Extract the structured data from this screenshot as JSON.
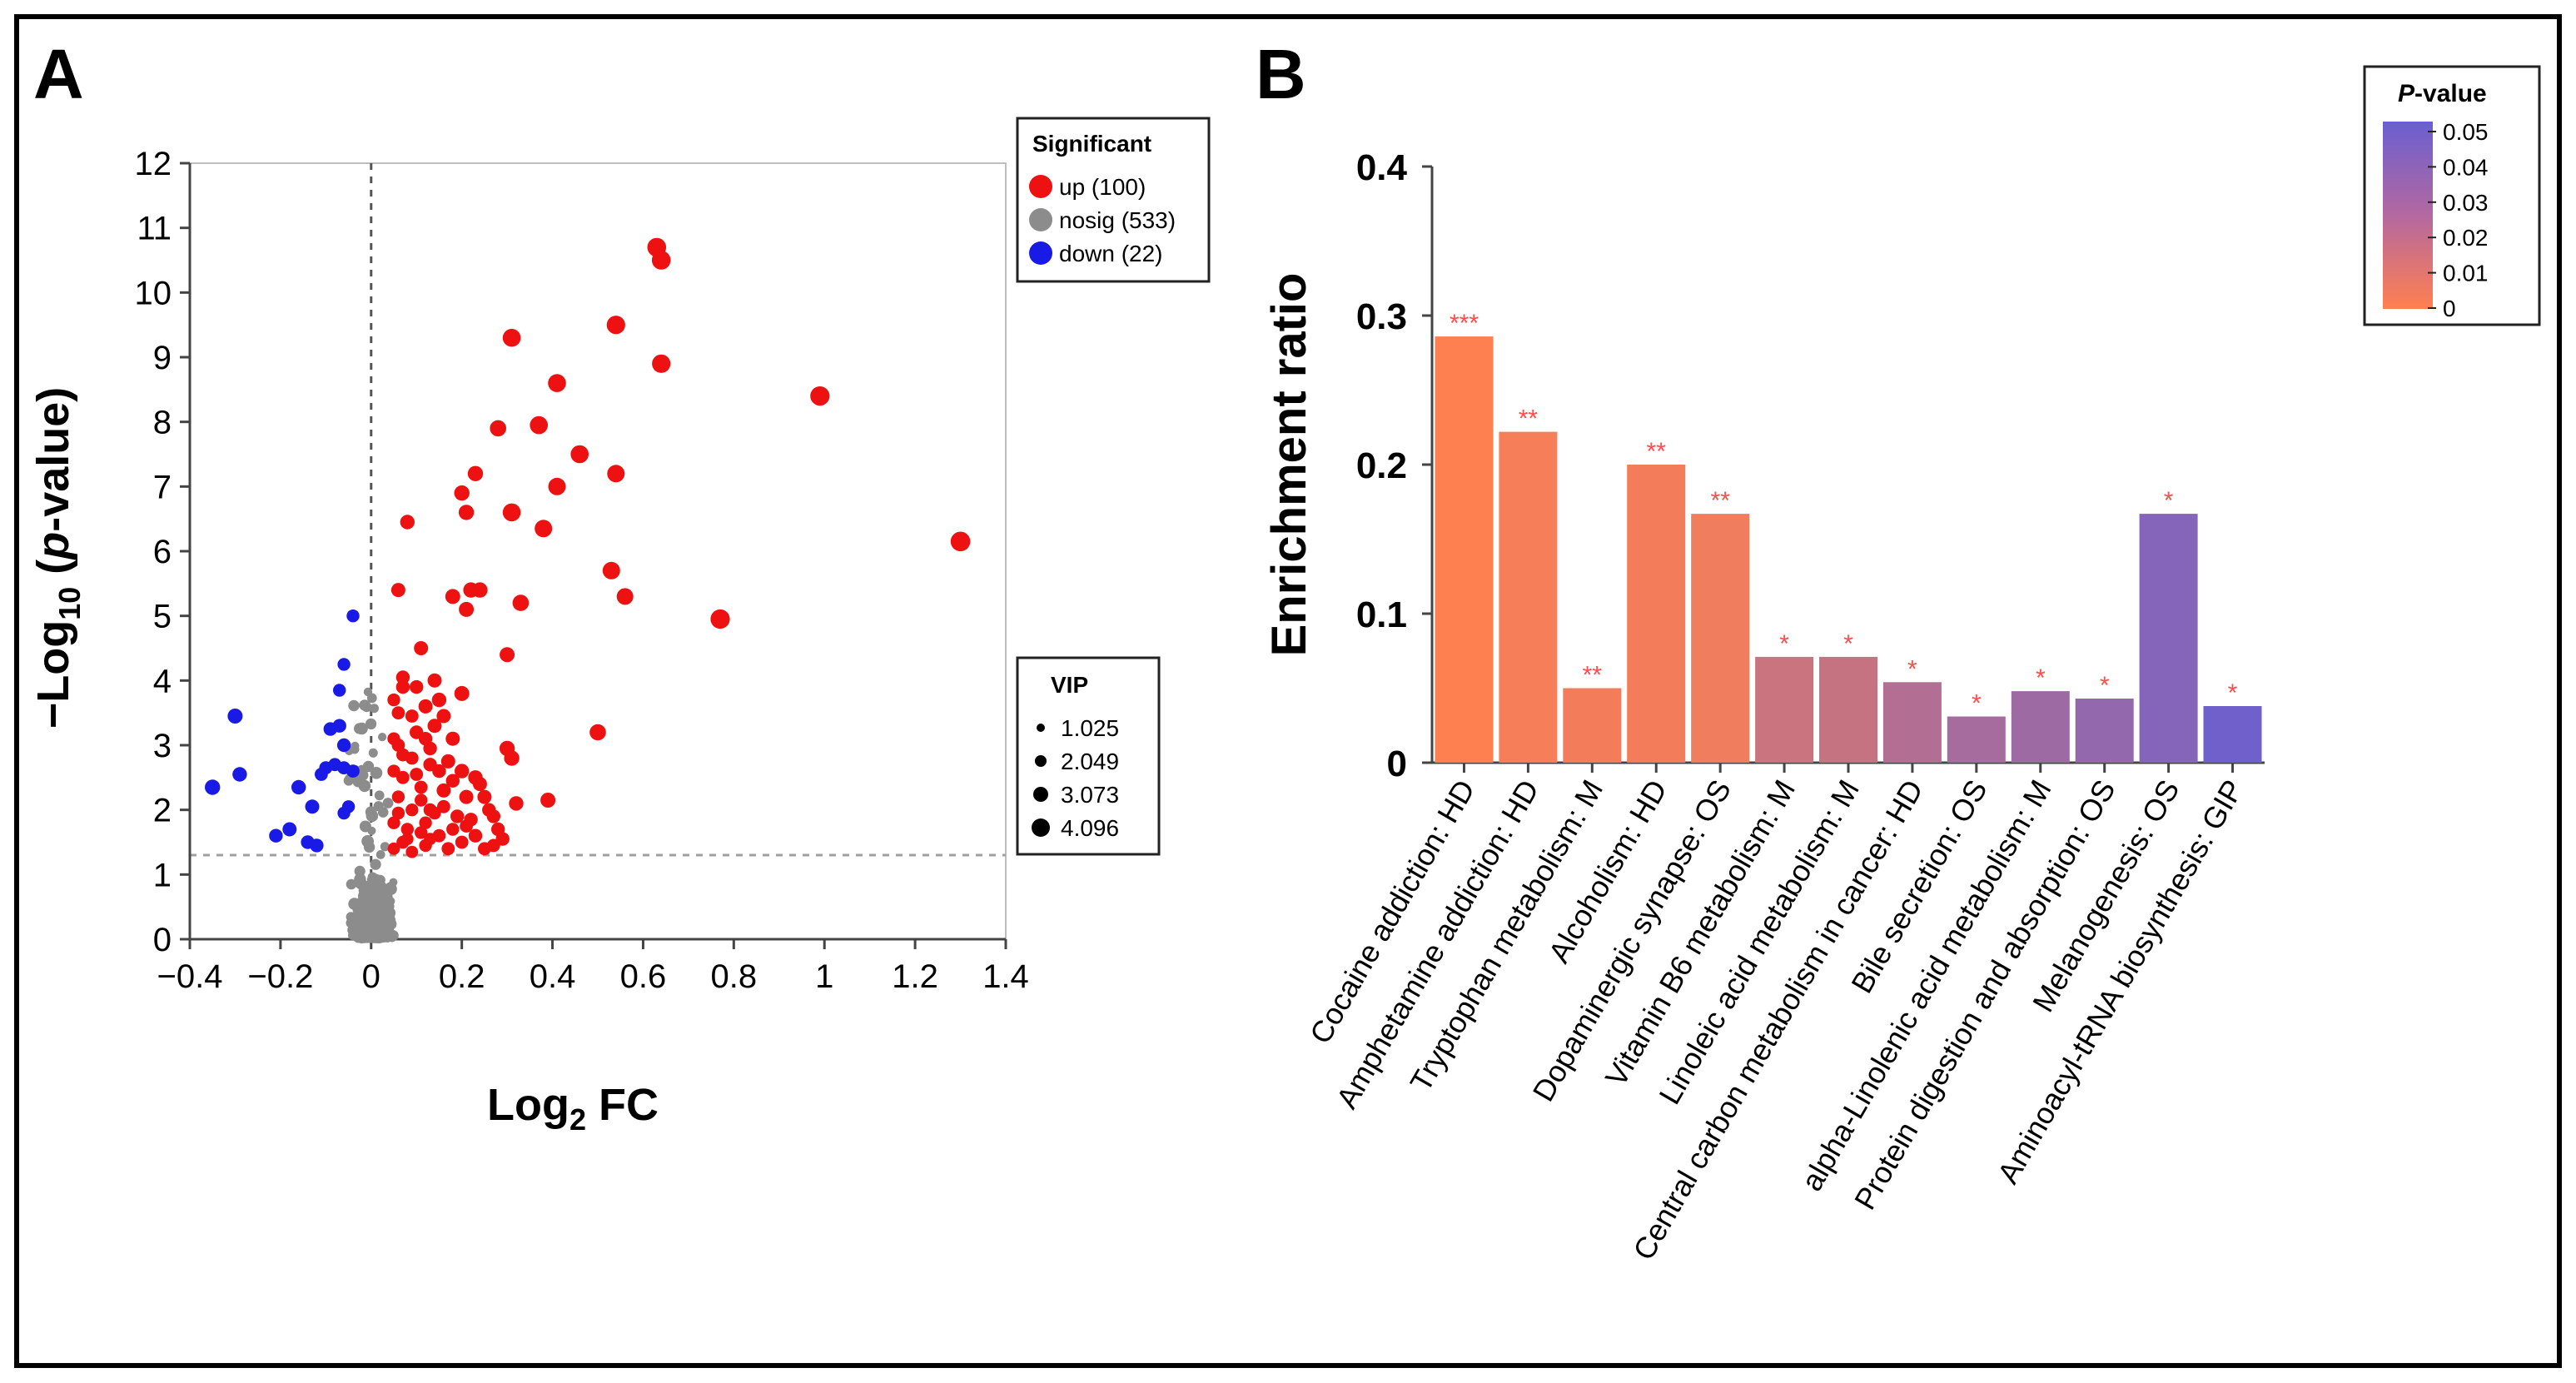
{
  "panel_a": {
    "letter": "A",
    "ylabel_prefix": "−Log",
    "ylabel_sub": "10",
    "ylabel_open": " (",
    "ylabel_italic": "p",
    "ylabel_rest": "-value)",
    "xlabel_main": "Log",
    "xlabel_sub": "2",
    "xlabel_rest": " FC",
    "legend_sig_title": "Significant",
    "legend_sig_items": [
      "up (100)",
      "nosig (533)",
      "down (22)"
    ],
    "legend_vip_title": "VIP",
    "legend_vip_items": [
      "1.025",
      "2.049",
      "3.073",
      "4.096"
    ]
  },
  "panel_b": {
    "letter": "B",
    "ylabel": "Enrichment ratio",
    "legend_title_italic": "P",
    "legend_title_rest": "-value",
    "legend_ticks": [
      "0.05",
      "0.04",
      "0.03",
      "0.02",
      "0.01",
      "0"
    ]
  },
  "colors": {
    "up": "#ee1111",
    "nosig": "#8c8c8c",
    "down": "#1a1ae6",
    "bar_low": "#ff8050",
    "bar_high": "#6a5fd0",
    "stars": "#ff4d4d"
  },
  "chart_data": [
    {
      "type": "scatter",
      "title": "",
      "xlabel": "Log2 FC",
      "ylabel": "−Log10 (p-value)",
      "xlim": [
        -0.4,
        1.4
      ],
      "ylim": [
        0,
        12
      ],
      "xticks": [
        -0.4,
        -0.2,
        0,
        0.2,
        0.4,
        0.6,
        0.8,
        1,
        1.2,
        1.4
      ],
      "yticks": [
        0,
        1,
        2,
        3,
        4,
        5,
        6,
        7,
        8,
        9,
        10,
        11,
        12
      ],
      "xtick_labels": [
        "−0.4",
        "−0.2",
        "0",
        "0.2",
        "0.4",
        "0.6",
        "0.8",
        "1",
        "1.2",
        "1.4"
      ],
      "ytick_labels": [
        "0",
        "1",
        "2",
        "3",
        "4",
        "5",
        "6",
        "7",
        "8",
        "9",
        "10",
        "11",
        "12"
      ],
      "threshold_y": 1.3,
      "threshold_x": 0,
      "series": [
        {
          "name": "up",
          "points": [
            [
              0.63,
              10.7,
              3.2
            ],
            [
              0.64,
              10.5,
              3.2
            ],
            [
              0.64,
              8.9,
              3.1
            ],
            [
              0.54,
              9.5,
              3.1
            ],
            [
              0.31,
              9.3,
              3.0
            ],
            [
              0.99,
              8.4,
              3.3
            ],
            [
              0.41,
              8.6,
              3.0
            ],
            [
              0.37,
              7.95,
              3.0
            ],
            [
              0.28,
              7.9,
              2.6
            ],
            [
              0.46,
              7.5,
              3.0
            ],
            [
              1.3,
              6.15,
              3.4
            ],
            [
              0.77,
              4.95,
              3.3
            ],
            [
              0.41,
              7.0,
              2.9
            ],
            [
              0.54,
              7.2,
              2.9
            ],
            [
              0.23,
              7.2,
              2.4
            ],
            [
              0.2,
              6.9,
              2.4
            ],
            [
              0.21,
              6.6,
              2.4
            ],
            [
              0.31,
              6.6,
              3.0
            ],
            [
              0.38,
              6.35,
              2.9
            ],
            [
              0.08,
              6.45,
              2.2
            ],
            [
              0.53,
              5.7,
              2.9
            ],
            [
              0.56,
              5.3,
              2.7
            ],
            [
              0.33,
              5.2,
              2.6
            ],
            [
              0.22,
              5.4,
              2.4
            ],
            [
              0.24,
              5.4,
              2.4
            ],
            [
              0.18,
              5.3,
              2.3
            ],
            [
              0.06,
              5.4,
              2.1
            ],
            [
              0.21,
              5.1,
              2.3
            ],
            [
              0.11,
              4.5,
              2.1
            ],
            [
              0.3,
              4.4,
              2.3
            ],
            [
              0.2,
              3.8,
              2.3
            ],
            [
              0.15,
              3.7,
              2.2
            ],
            [
              0.12,
              3.6,
              2.1
            ],
            [
              0.07,
              3.9,
              2.0
            ],
            [
              0.06,
              3.5,
              1.9
            ],
            [
              0.14,
              3.3,
              2.1
            ],
            [
              0.1,
              3.2,
              2.0
            ],
            [
              0.06,
              3.0,
              1.9
            ],
            [
              0.09,
              2.8,
              1.9
            ],
            [
              0.13,
              2.7,
              2.0
            ],
            [
              0.2,
              2.6,
              2.2
            ],
            [
              0.23,
              2.5,
              2.2
            ],
            [
              0.3,
              2.95,
              2.4
            ],
            [
              0.31,
              2.8,
              2.4
            ],
            [
              0.5,
              3.2,
              2.6
            ],
            [
              0.07,
              2.5,
              1.9
            ],
            [
              0.11,
              2.35,
              1.9
            ],
            [
              0.16,
              2.3,
              2.1
            ],
            [
              0.21,
              2.2,
              2.1
            ],
            [
              0.25,
              2.2,
              2.1
            ],
            [
              0.32,
              2.1,
              2.2
            ],
            [
              0.39,
              2.15,
              2.3
            ],
            [
              0.06,
              2.2,
              1.8
            ],
            [
              0.09,
              2.0,
              1.8
            ],
            [
              0.13,
              2.0,
              1.9
            ],
            [
              0.19,
              1.9,
              2.0
            ],
            [
              0.27,
              1.9,
              2.0
            ],
            [
              0.05,
              1.8,
              1.8
            ],
            [
              0.08,
              1.7,
              1.8
            ],
            [
              0.11,
              1.65,
              1.8
            ],
            [
              0.15,
              1.6,
              1.9
            ],
            [
              0.23,
              1.6,
              2.0
            ],
            [
              0.29,
              1.55,
              2.0
            ],
            [
              0.07,
              1.5,
              1.8
            ],
            [
              0.12,
              1.45,
              1.8
            ],
            [
              0.17,
              1.4,
              1.9
            ],
            [
              0.25,
              1.4,
              1.9
            ],
            [
              0.05,
              1.4,
              1.7
            ],
            [
              0.09,
              1.35,
              1.7
            ],
            [
              0.13,
              1.55,
              1.7
            ],
            [
              0.18,
              1.7,
              1.8
            ],
            [
              0.1,
              3.9,
              2.0
            ],
            [
              0.14,
              4.0,
              2.1
            ],
            [
              0.07,
              4.05,
              2.0
            ],
            [
              0.05,
              3.7,
              1.8
            ],
            [
              0.13,
              2.95,
              2.0
            ],
            [
              0.17,
              2.75,
              2.1
            ],
            [
              0.1,
              2.55,
              1.9
            ],
            [
              0.07,
              2.85,
              1.9
            ],
            [
              0.16,
              2.05,
              1.9
            ],
            [
              0.22,
              1.85,
              2.0
            ],
            [
              0.28,
              1.7,
              2.0
            ],
            [
              0.06,
              1.95,
              1.8
            ],
            [
              0.12,
              1.8,
              1.8
            ],
            [
              0.2,
              1.5,
              1.9
            ],
            [
              0.27,
              1.45,
              1.9
            ],
            [
              0.05,
              2.6,
              1.8
            ],
            [
              0.18,
              3.1,
              2.1
            ],
            [
              0.24,
              2.4,
              2.1
            ],
            [
              0.09,
              3.45,
              1.9
            ],
            [
              0.16,
              3.45,
              2.1
            ],
            [
              0.11,
              2.15,
              1.8
            ],
            [
              0.14,
              1.95,
              1.8
            ],
            [
              0.18,
              2.45,
              2.0
            ],
            [
              0.08,
              1.55,
              1.7
            ],
            [
              0.21,
              1.75,
              1.9
            ],
            [
              0.26,
              2.0,
              2.0
            ],
            [
              0.05,
              3.1,
              1.8
            ],
            [
              0.15,
              2.6,
              2.0
            ],
            [
              0.12,
              3.1,
              2.0
            ]
          ]
        },
        {
          "name": "down",
          "points": [
            [
              -0.3,
              3.45,
              2.3
            ],
            [
              -0.29,
              2.55,
              2.2
            ],
            [
              -0.35,
              2.35,
              2.4
            ],
            [
              -0.16,
              2.35,
              2.2
            ],
            [
              -0.13,
              2.05,
              2.1
            ],
            [
              -0.18,
              1.7,
              2.1
            ],
            [
              -0.21,
              1.6,
              2.0
            ],
            [
              -0.12,
              1.45,
              2.0
            ],
            [
              -0.14,
              1.5,
              2.0
            ],
            [
              -0.07,
              3.3,
              2.0
            ],
            [
              -0.09,
              3.25,
              2.0
            ],
            [
              -0.06,
              3.0,
              2.0
            ],
            [
              -0.08,
              2.7,
              1.9
            ],
            [
              -0.06,
              2.65,
              1.9
            ],
            [
              -0.04,
              2.6,
              1.9
            ],
            [
              -0.1,
              2.65,
              1.9
            ],
            [
              -0.04,
              5.0,
              1.8
            ],
            [
              -0.06,
              4.25,
              1.8
            ],
            [
              -0.07,
              3.85,
              1.8
            ],
            [
              -0.05,
              2.05,
              1.8
            ],
            [
              -0.06,
              1.95,
              1.8
            ],
            [
              -0.11,
              2.55,
              1.9
            ]
          ]
        }
      ]
    },
    {
      "type": "bar",
      "title": "",
      "xlabel": "",
      "ylabel": "Enrichment ratio",
      "ylim": [
        0,
        0.4
      ],
      "yticks": [
        0,
        0.1,
        0.2,
        0.3,
        0.4
      ],
      "ytick_labels": [
        "0",
        "0.1",
        "0.2",
        "0.3",
        "0.4"
      ],
      "categories": [
        "Cocaine addiction: HD",
        "Amphetamine addiction: HD",
        "Tryptophan metabolism: M",
        "Alcoholism: HD",
        "Dopaminergic synapse: OS",
        "Vitamin B6 metabolism: M",
        "Linoleic acid metabolism: M",
        "Central carbon metabolism in cancer: HD",
        "Bile secretion: OS",
        "alpha-Linolenic acid metabolism: M",
        "Protein digestion and absorption: OS",
        "Melanogenesis: OS",
        "Aminoacyl-tRNA biosynthesis: GIP"
      ],
      "values": [
        0.286,
        0.222,
        0.05,
        0.2,
        0.167,
        0.071,
        0.071,
        0.054,
        0.031,
        0.048,
        0.043,
        0.167,
        0.038
      ],
      "p_values": [
        0.0005,
        0.003,
        0.004,
        0.004,
        0.005,
        0.018,
        0.019,
        0.026,
        0.03,
        0.033,
        0.036,
        0.041,
        0.048
      ],
      "significance": [
        "***",
        "**",
        "**",
        "**",
        "**",
        "*",
        "*",
        "*",
        "*",
        "*",
        "*",
        "*",
        "*"
      ],
      "color_scale": {
        "min": 0,
        "max": 0.05,
        "label": "P-value"
      }
    }
  ]
}
